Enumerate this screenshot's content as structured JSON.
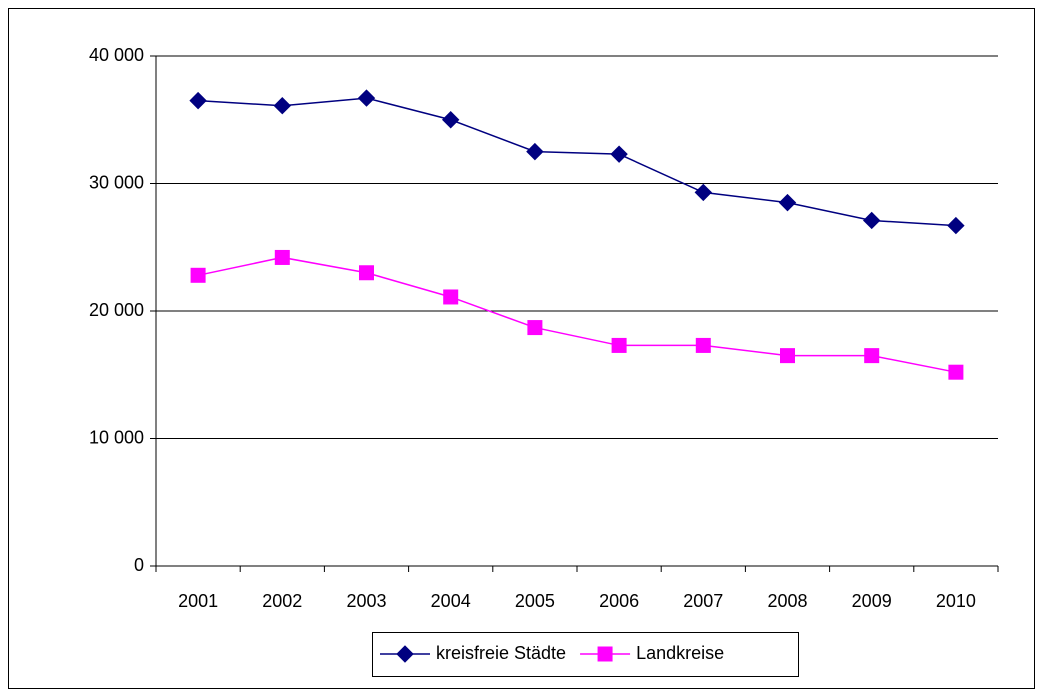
{
  "chart_data": {
    "type": "line",
    "categories": [
      "2001",
      "2002",
      "2003",
      "2004",
      "2005",
      "2006",
      "2007",
      "2008",
      "2009",
      "2010"
    ],
    "series": [
      {
        "name": "kreisfreie Städte",
        "color": "#000080",
        "marker": "diamond",
        "values": [
          36500,
          36100,
          36700,
          35000,
          32500,
          32300,
          29300,
          28500,
          27100,
          26700
        ]
      },
      {
        "name": "Landkreise",
        "color": "#ff00ff",
        "marker": "square",
        "values": [
          22800,
          24200,
          23000,
          21100,
          18700,
          17300,
          17300,
          16500,
          16500,
          15200
        ]
      }
    ],
    "ylim": [
      0,
      40000
    ],
    "yticks": [
      {
        "value": 0,
        "label": "0"
      },
      {
        "value": 10000,
        "label": "10 000"
      },
      {
        "value": 20000,
        "label": "20 000"
      },
      {
        "value": 30000,
        "label": "30 000"
      },
      {
        "value": 40000,
        "label": "40 000"
      }
    ],
    "grid": true,
    "legend": "bottom"
  }
}
